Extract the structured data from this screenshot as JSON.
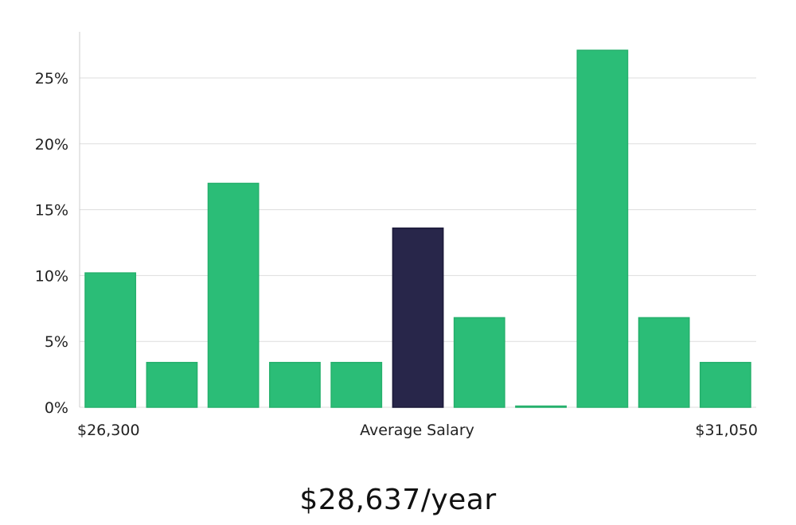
{
  "chart_data": {
    "type": "bar",
    "title": "",
    "xlabel": "Average Salary",
    "ylabel": "",
    "x_range_labels": {
      "min": "$26,300",
      "max": "$31,050"
    },
    "y_ticks": [
      "0%",
      "5%",
      "10%",
      "15%",
      "20%",
      "25%"
    ],
    "y_tick_values": [
      0,
      5,
      10,
      15,
      20,
      25
    ],
    "ylim": [
      0,
      28.5
    ],
    "values": [
      10.2,
      3.4,
      17.0,
      3.4,
      3.4,
      13.6,
      6.8,
      0.0,
      27.1,
      6.8,
      3.4
    ],
    "highlight_index": 5,
    "colors": {
      "bar": "#2bbd77",
      "highlight": "#28264a",
      "grid": "#dddddd",
      "axis": "#cccccc"
    }
  },
  "summary": {
    "salary": "$28,637/year"
  }
}
